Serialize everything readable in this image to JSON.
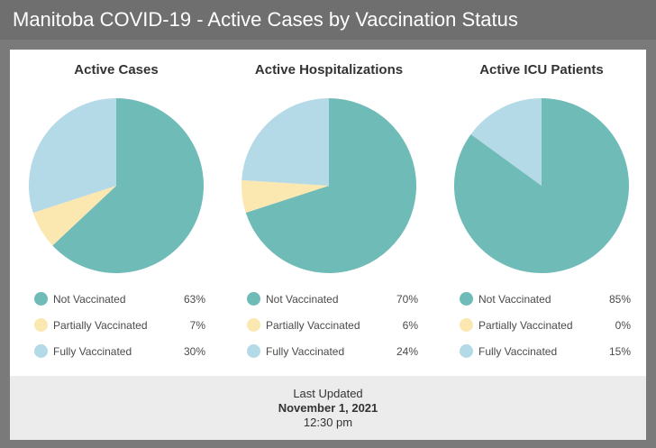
{
  "header": {
    "title": "Manitoba COVID-19 - Active Cases by Vaccination Status"
  },
  "colors": {
    "not_vaccinated": "#6fbbb7",
    "partially_vaccinated": "#fbe8b0",
    "fully_vaccinated": "#b4d9e7"
  },
  "chart_data": [
    {
      "type": "pie",
      "title": "Active Cases",
      "slices": [
        {
          "label": "Not Vaccinated",
          "value": 63,
          "display": "63%"
        },
        {
          "label": "Partially Vaccinated",
          "value": 7,
          "display": "7%"
        },
        {
          "label": "Fully Vaccinated",
          "value": 30,
          "display": "30%"
        }
      ]
    },
    {
      "type": "pie",
      "title": "Active Hospitalizations",
      "slices": [
        {
          "label": "Not Vaccinated",
          "value": 70,
          "display": "70%"
        },
        {
          "label": "Partially Vaccinated",
          "value": 6,
          "display": "6%"
        },
        {
          "label": "Fully Vaccinated",
          "value": 24,
          "display": "24%"
        }
      ]
    },
    {
      "type": "pie",
      "title": "Active ICU Patients",
      "slices": [
        {
          "label": "Not Vaccinated",
          "value": 85,
          "display": "85%"
        },
        {
          "label": "Partially Vaccinated",
          "value": 0,
          "display": "0%"
        },
        {
          "label": "Fully Vaccinated",
          "value": 15,
          "display": "15%"
        }
      ]
    }
  ],
  "footer": {
    "label": "Last Updated",
    "date": "November 1, 2021",
    "time": "12:30 pm"
  }
}
